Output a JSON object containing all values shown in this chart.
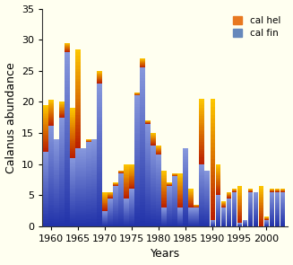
{
  "years": [
    1959,
    1960,
    1961,
    1962,
    1963,
    1964,
    1965,
    1966,
    1967,
    1968,
    1969,
    1970,
    1971,
    1972,
    1973,
    1974,
    1975,
    1976,
    1977,
    1978,
    1979,
    1980,
    1981,
    1982,
    1983,
    1984,
    1985,
    1986,
    1987,
    1988,
    1989,
    1990,
    1991,
    1992,
    1993,
    1994,
    1995,
    1996,
    1997,
    1998,
    1999,
    2000,
    2001,
    2002,
    2003
  ],
  "cal_fin": [
    12.0,
    16.2,
    14.0,
    17.5,
    28.0,
    11.0,
    12.5,
    12.5,
    13.5,
    14.0,
    23.0,
    2.5,
    4.5,
    6.5,
    8.5,
    4.5,
    6.0,
    21.0,
    25.5,
    16.5,
    13.0,
    11.5,
    3.0,
    6.5,
    8.0,
    3.0,
    12.5,
    3.0,
    3.0,
    10.0,
    9.0,
    1.0,
    5.0,
    3.0,
    4.5,
    5.5,
    0.5,
    1.0,
    5.5,
    5.5,
    0.0,
    1.0,
    5.5,
    5.5,
    5.5
  ],
  "cal_hel": [
    7.5,
    4.2,
    0.0,
    2.5,
    1.5,
    8.0,
    16.0,
    0.0,
    0.5,
    0.0,
    2.0,
    3.0,
    1.0,
    0.5,
    0.5,
    5.5,
    4.0,
    0.5,
    1.5,
    0.5,
    2.0,
    1.5,
    6.0,
    0.5,
    0.5,
    5.5,
    0.0,
    3.0,
    0.5,
    10.5,
    0.0,
    19.5,
    5.0,
    1.0,
    1.0,
    0.5,
    6.0,
    0.0,
    0.5,
    0.0,
    6.5,
    0.5,
    0.5,
    0.5,
    0.5
  ],
  "background_color": "#fffff0",
  "ylabel": "Calanus abundance",
  "xlabel": "Years",
  "ylim": [
    0,
    35
  ],
  "yticks": [
    0,
    5,
    10,
    15,
    20,
    25,
    30,
    35
  ],
  "xticks": [
    1960,
    1965,
    1970,
    1975,
    1980,
    1985,
    1990,
    1995,
    2000
  ],
  "legend_cal_hel": "cal hel",
  "legend_cal_fin": "cal fin",
  "bar_width": 0.92,
  "xlim": [
    1958.4,
    2004.0
  ]
}
